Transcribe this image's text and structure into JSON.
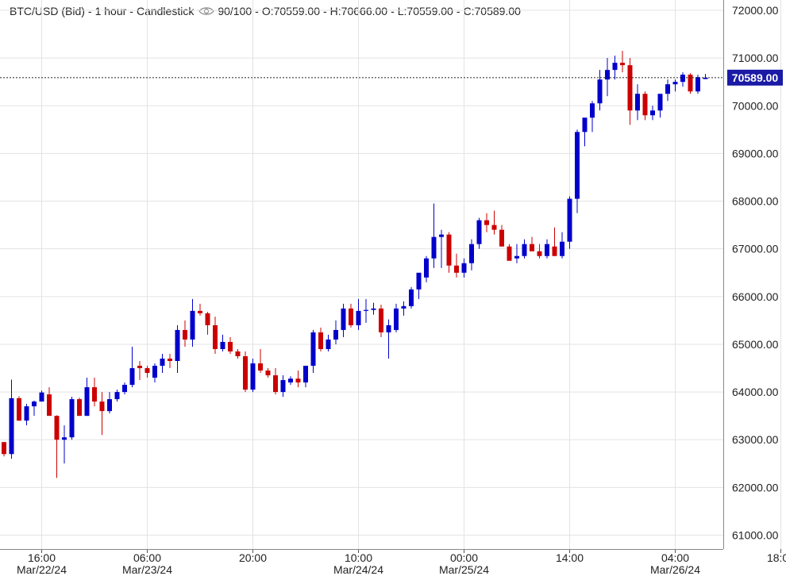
{
  "header": {
    "symbol": "BTC/USD (Bid)",
    "interval": "1 hour",
    "style": "Candlestick",
    "visibility": "90/100",
    "open": "O:70559.00",
    "high": "H:70666.00",
    "low": "L:70559.00",
    "close": "C:70589.00"
  },
  "colors": {
    "up": "#0000cc",
    "down": "#cc0000",
    "grid": "#e3e3e3",
    "price_tag": "#1a1aa6",
    "axis_text": "#222222"
  },
  "chart_data": {
    "type": "candlestick",
    "title": "",
    "xlabel": "",
    "ylabel": "",
    "ylim": [
      61000,
      72300
    ],
    "y_ticks": [
      "72000.00",
      "71000.00",
      "70000.00",
      "69000.00",
      "68000.00",
      "67000.00",
      "66000.00",
      "65000.00",
      "64000.00",
      "63000.00",
      "62000.00",
      "61000.00"
    ],
    "x_ticks": [
      {
        "label": "16:00",
        "date": "Mar/22/24",
        "index": 5
      },
      {
        "label": "06:00",
        "date": "Mar/23/24",
        "index": 19
      },
      {
        "label": "20:00",
        "date": "",
        "index": 33
      },
      {
        "label": "10:00",
        "date": "Mar/24/24",
        "index": 47
      },
      {
        "label": "00:00",
        "date": "Mar/25/24",
        "index": 61
      },
      {
        "label": "14:00",
        "date": "",
        "index": 75
      },
      {
        "label": "04:00",
        "date": "Mar/26/24",
        "index": 89
      },
      {
        "label": "18:00",
        "date": "",
        "index": 103
      }
    ],
    "last_price": "70589.00",
    "candles": [
      [
        62950,
        62950,
        62650,
        62700
      ],
      [
        62700,
        64260,
        62600,
        63870
      ],
      [
        63870,
        63910,
        63400,
        63400
      ],
      [
        63400,
        63750,
        63300,
        63700
      ],
      [
        63700,
        63820,
        63500,
        63800
      ],
      [
        63800,
        64030,
        63800,
        63990
      ],
      [
        63950,
        64100,
        63510,
        63500
      ],
      [
        63500,
        63510,
        62200,
        63000
      ],
      [
        63000,
        63300,
        62500,
        63050
      ],
      [
        63050,
        63900,
        63000,
        63850
      ],
      [
        63850,
        63880,
        63500,
        63500
      ],
      [
        63500,
        64300,
        63500,
        64100
      ],
      [
        64100,
        64300,
        63700,
        63800
      ],
      [
        63800,
        64000,
        63100,
        63600
      ],
      [
        63600,
        64000,
        63550,
        63850
      ],
      [
        63850,
        64050,
        63800,
        64000
      ],
      [
        64000,
        64200,
        63950,
        64150
      ],
      [
        64150,
        64950,
        64100,
        64500
      ],
      [
        64550,
        64650,
        64250,
        64500
      ],
      [
        64500,
        64550,
        64300,
        64400
      ],
      [
        64300,
        64600,
        64200,
        64550
      ],
      [
        64550,
        64800,
        64400,
        64700
      ],
      [
        64700,
        64800,
        64500,
        64650
      ],
      [
        64650,
        65400,
        64400,
        65300
      ],
      [
        65300,
        65500,
        64950,
        65100
      ],
      [
        65100,
        65950,
        64950,
        65700
      ],
      [
        65700,
        65850,
        65600,
        65650
      ],
      [
        65650,
        65680,
        65200,
        65400
      ],
      [
        65400,
        65580,
        64800,
        64900
      ],
      [
        64900,
        65200,
        64850,
        65050
      ],
      [
        65050,
        65150,
        64800,
        64850
      ],
      [
        64850,
        64900,
        64700,
        64750
      ],
      [
        64750,
        64850,
        64000,
        64050
      ],
      [
        64050,
        64700,
        64000,
        64600
      ],
      [
        64600,
        64900,
        64400,
        64450
      ],
      [
        64450,
        64500,
        64300,
        64350
      ],
      [
        64350,
        64500,
        63950,
        64000
      ],
      [
        64000,
        64350,
        63900,
        64250
      ],
      [
        64200,
        64330,
        64150,
        64280
      ],
      [
        64280,
        64450,
        64100,
        64200
      ],
      [
        64200,
        64500,
        64100,
        64550
      ],
      [
        64550,
        65300,
        64400,
        65250
      ],
      [
        65250,
        65350,
        64850,
        64900
      ],
      [
        64900,
        65200,
        64850,
        65100
      ],
      [
        65100,
        65500,
        65000,
        65300
      ],
      [
        65300,
        65850,
        65150,
        65750
      ],
      [
        65750,
        65850,
        65350,
        65400
      ],
      [
        65400,
        65950,
        65300,
        65700
      ],
      [
        65700,
        65950,
        65450,
        65720
      ],
      [
        65720,
        65870,
        65620,
        65750
      ],
      [
        65750,
        65830,
        65150,
        65250
      ],
      [
        65250,
        65520,
        64700,
        65400
      ],
      [
        65300,
        65850,
        65250,
        65750
      ],
      [
        65750,
        65900,
        65600,
        65800
      ],
      [
        65800,
        66200,
        65750,
        66150
      ],
      [
        66150,
        66400,
        65950,
        66500
      ],
      [
        66400,
        66850,
        66300,
        66800
      ],
      [
        66800,
        67950,
        66600,
        67250
      ],
      [
        67250,
        67400,
        66600,
        67300
      ],
      [
        67300,
        67350,
        66500,
        66650
      ],
      [
        66650,
        66900,
        66400,
        66500
      ],
      [
        66500,
        66800,
        66400,
        66700
      ],
      [
        66700,
        67200,
        66550,
        67100
      ],
      [
        67100,
        67650,
        67000,
        67600
      ],
      [
        67600,
        67750,
        67350,
        67500
      ],
      [
        67500,
        67800,
        67300,
        67400
      ],
      [
        67400,
        67500,
        67050,
        67050
      ],
      [
        67050,
        67100,
        66800,
        66750
      ],
      [
        66800,
        67100,
        66700,
        66850
      ],
      [
        66850,
        67200,
        66800,
        67100
      ],
      [
        67100,
        67250,
        66950,
        66950
      ],
      [
        66950,
        67100,
        66800,
        66850
      ],
      [
        66850,
        67200,
        66800,
        67100
      ],
      [
        67050,
        67450,
        66850,
        66850
      ],
      [
        66850,
        67350,
        66800,
        67150
      ],
      [
        67150,
        68100,
        67000,
        68050
      ],
      [
        68050,
        69500,
        67750,
        69450
      ],
      [
        69450,
        69650,
        69150,
        69750
      ],
      [
        69750,
        70100,
        69450,
        70050
      ],
      [
        70050,
        70750,
        69900,
        70550
      ],
      [
        70550,
        71000,
        70200,
        70750
      ],
      [
        70750,
        71050,
        70550,
        70900
      ],
      [
        70900,
        71150,
        70700,
        70850
      ],
      [
        70850,
        71000,
        69600,
        69900
      ],
      [
        69900,
        70450,
        69700,
        70250
      ],
      [
        70250,
        70300,
        69700,
        69800
      ],
      [
        69800,
        70000,
        69700,
        69900
      ],
      [
        69900,
        70200,
        69750,
        70250
      ],
      [
        70250,
        70550,
        70100,
        70450
      ],
      [
        70450,
        70550,
        70300,
        70500
      ],
      [
        70500,
        70700,
        70400,
        70650
      ],
      [
        70650,
        70680,
        70250,
        70300
      ],
      [
        70300,
        70650,
        70250,
        70600
      ],
      [
        70559,
        70666,
        70559,
        70589
      ]
    ]
  }
}
